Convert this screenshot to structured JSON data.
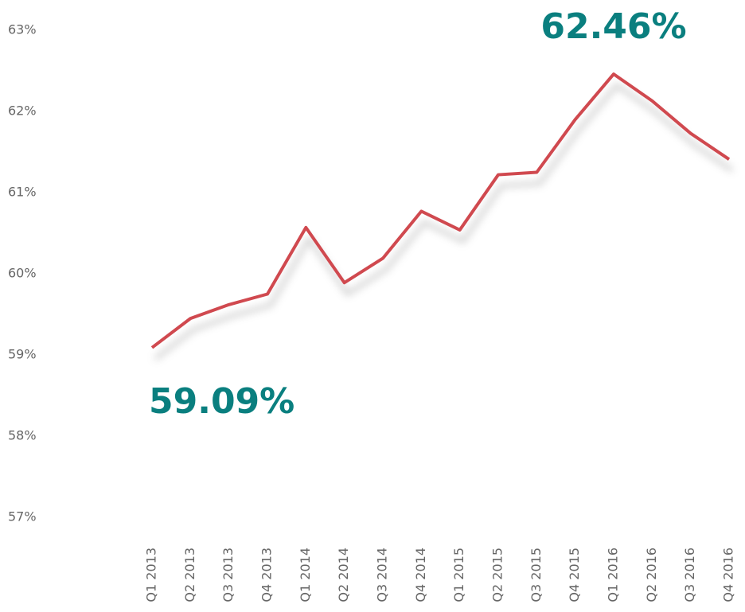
{
  "chart_data": {
    "type": "line",
    "categories": [
      "Q1 2013",
      "Q2 2013",
      "Q3 2013",
      "Q4 2013",
      "Q1 2014",
      "Q2 2014",
      "Q3 2014",
      "Q4 2014",
      "Q1 2015",
      "Q2 2015",
      "Q3 2015",
      "Q4 2015",
      "Q1 2016",
      "Q2 2016",
      "Q3 2016",
      "Q4 2016"
    ],
    "values": [
      59.09,
      59.45,
      59.62,
      59.75,
      60.57,
      59.89,
      60.19,
      60.77,
      60.54,
      61.22,
      61.25,
      61.9,
      62.46,
      62.13,
      61.73,
      61.41
    ],
    "value_labels": [
      "59.09%",
      null,
      null,
      null,
      null,
      null,
      null,
      null,
      null,
      null,
      null,
      null,
      "62.46%",
      null,
      null,
      null
    ],
    "color": "#d0494f",
    "label_color": "#0a7f7f",
    "ylim": [
      57,
      63
    ],
    "yticks": [
      {
        "value": 57,
        "label": "57%"
      },
      {
        "value": 58,
        "label": "58%"
      },
      {
        "value": 59,
        "label": "59%"
      },
      {
        "value": 60,
        "label": "60%"
      },
      {
        "value": 61,
        "label": "61%"
      },
      {
        "value": 62,
        "label": "62%"
      },
      {
        "value": 63,
        "label": "63%"
      }
    ],
    "grid": false
  }
}
